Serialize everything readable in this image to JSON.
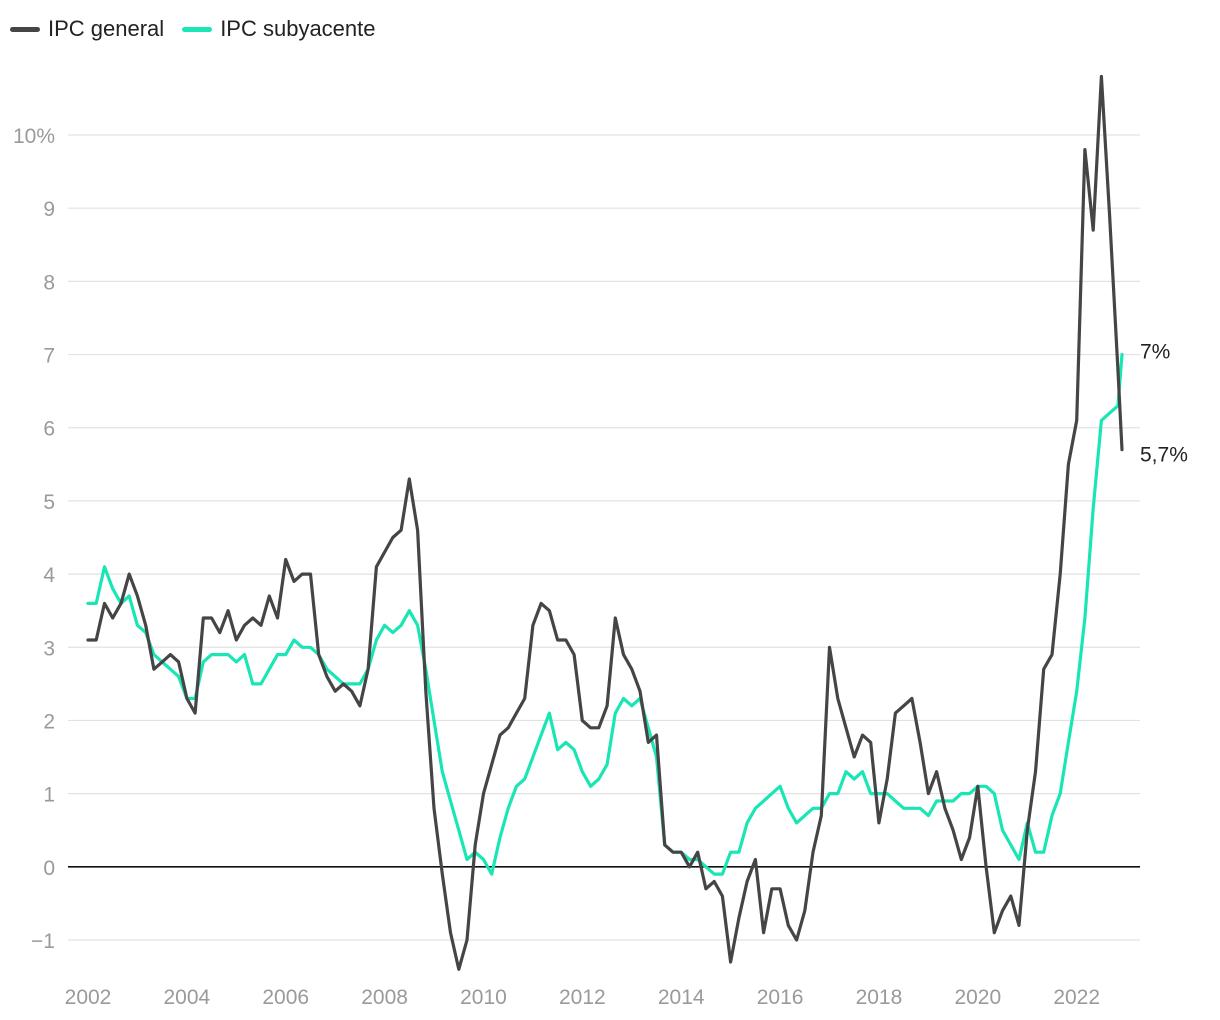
{
  "chart_data": {
    "type": "line",
    "y_unit": "%",
    "ylim": [
      -1.3,
      10.9
    ],
    "xlim": [
      2002.0,
      2023.0
    ],
    "grid": true,
    "legend_position": "top-left",
    "y_ticks": [
      {
        "value": 10,
        "label": "10%"
      },
      {
        "value": 9,
        "label": "9"
      },
      {
        "value": 8,
        "label": "8"
      },
      {
        "value": 7,
        "label": "7"
      },
      {
        "value": 6,
        "label": "6"
      },
      {
        "value": 5,
        "label": "5"
      },
      {
        "value": 4,
        "label": "4"
      },
      {
        "value": 3,
        "label": "3"
      },
      {
        "value": 2,
        "label": "2"
      },
      {
        "value": 1,
        "label": "1"
      },
      {
        "value": 0,
        "label": "0"
      },
      {
        "value": -1,
        "label": "−1"
      }
    ],
    "x_ticks": [
      "2002",
      "2004",
      "2006",
      "2008",
      "2010",
      "2012",
      "2014",
      "2016",
      "2018",
      "2020",
      "2022"
    ],
    "series": [
      {
        "name": "IPC general",
        "color": "#454545",
        "end_label": "5,7%",
        "points": [
          [
            "2002-01",
            3.1
          ],
          [
            "2002-03",
            3.1
          ],
          [
            "2002-05",
            3.6
          ],
          [
            "2002-07",
            3.4
          ],
          [
            "2002-09",
            3.6
          ],
          [
            "2002-11",
            4.0
          ],
          [
            "2003-01",
            3.7
          ],
          [
            "2003-03",
            3.3
          ],
          [
            "2003-05",
            2.7
          ],
          [
            "2003-07",
            2.8
          ],
          [
            "2003-09",
            2.9
          ],
          [
            "2003-11",
            2.8
          ],
          [
            "2004-01",
            2.3
          ],
          [
            "2004-03",
            2.1
          ],
          [
            "2004-05",
            3.4
          ],
          [
            "2004-07",
            3.4
          ],
          [
            "2004-09",
            3.2
          ],
          [
            "2004-11",
            3.5
          ],
          [
            "2005-01",
            3.1
          ],
          [
            "2005-03",
            3.3
          ],
          [
            "2005-05",
            3.4
          ],
          [
            "2005-07",
            3.3
          ],
          [
            "2005-09",
            3.7
          ],
          [
            "2005-11",
            3.4
          ],
          [
            "2006-01",
            4.2
          ],
          [
            "2006-03",
            3.9
          ],
          [
            "2006-05",
            4.0
          ],
          [
            "2006-07",
            4.0
          ],
          [
            "2006-09",
            2.9
          ],
          [
            "2006-11",
            2.6
          ],
          [
            "2007-01",
            2.4
          ],
          [
            "2007-03",
            2.5
          ],
          [
            "2007-05",
            2.4
          ],
          [
            "2007-07",
            2.2
          ],
          [
            "2007-09",
            2.7
          ],
          [
            "2007-11",
            4.1
          ],
          [
            "2008-01",
            4.3
          ],
          [
            "2008-03",
            4.5
          ],
          [
            "2008-05",
            4.6
          ],
          [
            "2008-07",
            5.3
          ],
          [
            "2008-09",
            4.6
          ],
          [
            "2008-11",
            2.4
          ],
          [
            "2009-01",
            0.8
          ],
          [
            "2009-03",
            -0.1
          ],
          [
            "2009-05",
            -0.9
          ],
          [
            "2009-07",
            -1.4
          ],
          [
            "2009-09",
            -1.0
          ],
          [
            "2009-11",
            0.3
          ],
          [
            "2010-01",
            1.0
          ],
          [
            "2010-03",
            1.4
          ],
          [
            "2010-05",
            1.8
          ],
          [
            "2010-07",
            1.9
          ],
          [
            "2010-09",
            2.1
          ],
          [
            "2010-11",
            2.3
          ],
          [
            "2011-01",
            3.3
          ],
          [
            "2011-03",
            3.6
          ],
          [
            "2011-05",
            3.5
          ],
          [
            "2011-07",
            3.1
          ],
          [
            "2011-09",
            3.1
          ],
          [
            "2011-11",
            2.9
          ],
          [
            "2012-01",
            2.0
          ],
          [
            "2012-03",
            1.9
          ],
          [
            "2012-05",
            1.9
          ],
          [
            "2012-07",
            2.2
          ],
          [
            "2012-09",
            3.4
          ],
          [
            "2012-11",
            2.9
          ],
          [
            "2013-01",
            2.7
          ],
          [
            "2013-03",
            2.4
          ],
          [
            "2013-05",
            1.7
          ],
          [
            "2013-07",
            1.8
          ],
          [
            "2013-09",
            0.3
          ],
          [
            "2013-11",
            0.2
          ],
          [
            "2014-01",
            0.2
          ],
          [
            "2014-03",
            0.0
          ],
          [
            "2014-05",
            0.2
          ],
          [
            "2014-07",
            -0.3
          ],
          [
            "2014-09",
            -0.2
          ],
          [
            "2014-11",
            -0.4
          ],
          [
            "2015-01",
            -1.3
          ],
          [
            "2015-03",
            -0.7
          ],
          [
            "2015-05",
            -0.2
          ],
          [
            "2015-07",
            0.1
          ],
          [
            "2015-09",
            -0.9
          ],
          [
            "2015-11",
            -0.3
          ],
          [
            "2016-01",
            -0.3
          ],
          [
            "2016-03",
            -0.8
          ],
          [
            "2016-05",
            -1.0
          ],
          [
            "2016-07",
            -0.6
          ],
          [
            "2016-09",
            0.2
          ],
          [
            "2016-11",
            0.7
          ],
          [
            "2017-01",
            3.0
          ],
          [
            "2017-03",
            2.3
          ],
          [
            "2017-05",
            1.9
          ],
          [
            "2017-07",
            1.5
          ],
          [
            "2017-09",
            1.8
          ],
          [
            "2017-11",
            1.7
          ],
          [
            "2018-01",
            0.6
          ],
          [
            "2018-03",
            1.2
          ],
          [
            "2018-05",
            2.1
          ],
          [
            "2018-07",
            2.2
          ],
          [
            "2018-09",
            2.3
          ],
          [
            "2018-11",
            1.7
          ],
          [
            "2019-01",
            1.0
          ],
          [
            "2019-03",
            1.3
          ],
          [
            "2019-05",
            0.8
          ],
          [
            "2019-07",
            0.5
          ],
          [
            "2019-09",
            0.1
          ],
          [
            "2019-11",
            0.4
          ],
          [
            "2020-01",
            1.1
          ],
          [
            "2020-03",
            0.0
          ],
          [
            "2020-05",
            -0.9
          ],
          [
            "2020-07",
            -0.6
          ],
          [
            "2020-09",
            -0.4
          ],
          [
            "2020-11",
            -0.8
          ],
          [
            "2021-01",
            0.5
          ],
          [
            "2021-03",
            1.3
          ],
          [
            "2021-05",
            2.7
          ],
          [
            "2021-07",
            2.9
          ],
          [
            "2021-09",
            4.0
          ],
          [
            "2021-11",
            5.5
          ],
          [
            "2022-01",
            6.1
          ],
          [
            "2022-03",
            9.8
          ],
          [
            "2022-05",
            8.7
          ],
          [
            "2022-07",
            10.8
          ],
          [
            "2022-09",
            8.9
          ],
          [
            "2022-11",
            6.8
          ],
          [
            "2022-12",
            5.7
          ]
        ]
      },
      {
        "name": "IPC subyacente",
        "color": "#19e6b4",
        "end_label": "7%",
        "points": [
          [
            "2002-01",
            3.6
          ],
          [
            "2002-03",
            3.6
          ],
          [
            "2002-05",
            4.1
          ],
          [
            "2002-07",
            3.8
          ],
          [
            "2002-09",
            3.6
          ],
          [
            "2002-11",
            3.7
          ],
          [
            "2003-01",
            3.3
          ],
          [
            "2003-03",
            3.2
          ],
          [
            "2003-05",
            2.9
          ],
          [
            "2003-07",
            2.8
          ],
          [
            "2003-09",
            2.7
          ],
          [
            "2003-11",
            2.6
          ],
          [
            "2004-01",
            2.3
          ],
          [
            "2004-03",
            2.3
          ],
          [
            "2004-05",
            2.8
          ],
          [
            "2004-07",
            2.9
          ],
          [
            "2004-09",
            2.9
          ],
          [
            "2004-11",
            2.9
          ],
          [
            "2005-01",
            2.8
          ],
          [
            "2005-03",
            2.9
          ],
          [
            "2005-05",
            2.5
          ],
          [
            "2005-07",
            2.5
          ],
          [
            "2005-09",
            2.7
          ],
          [
            "2005-11",
            2.9
          ],
          [
            "2006-01",
            2.9
          ],
          [
            "2006-03",
            3.1
          ],
          [
            "2006-05",
            3.0
          ],
          [
            "2006-07",
            3.0
          ],
          [
            "2006-09",
            2.9
          ],
          [
            "2006-11",
            2.7
          ],
          [
            "2007-01",
            2.6
          ],
          [
            "2007-03",
            2.5
          ],
          [
            "2007-05",
            2.5
          ],
          [
            "2007-07",
            2.5
          ],
          [
            "2007-09",
            2.7
          ],
          [
            "2007-11",
            3.1
          ],
          [
            "2008-01",
            3.3
          ],
          [
            "2008-03",
            3.2
          ],
          [
            "2008-05",
            3.3
          ],
          [
            "2008-07",
            3.5
          ],
          [
            "2008-09",
            3.3
          ],
          [
            "2008-11",
            2.7
          ],
          [
            "2009-01",
            2.0
          ],
          [
            "2009-03",
            1.3
          ],
          [
            "2009-05",
            0.9
          ],
          [
            "2009-07",
            0.5
          ],
          [
            "2009-09",
            0.1
          ],
          [
            "2009-11",
            0.2
          ],
          [
            "2010-01",
            0.1
          ],
          [
            "2010-03",
            -0.1
          ],
          [
            "2010-05",
            0.4
          ],
          [
            "2010-07",
            0.8
          ],
          [
            "2010-09",
            1.1
          ],
          [
            "2010-11",
            1.2
          ],
          [
            "2011-01",
            1.5
          ],
          [
            "2011-03",
            1.8
          ],
          [
            "2011-05",
            2.1
          ],
          [
            "2011-07",
            1.6
          ],
          [
            "2011-09",
            1.7
          ],
          [
            "2011-11",
            1.6
          ],
          [
            "2012-01",
            1.3
          ],
          [
            "2012-03",
            1.1
          ],
          [
            "2012-05",
            1.2
          ],
          [
            "2012-07",
            1.4
          ],
          [
            "2012-09",
            2.1
          ],
          [
            "2012-11",
            2.3
          ],
          [
            "2013-01",
            2.2
          ],
          [
            "2013-03",
            2.3
          ],
          [
            "2013-05",
            1.9
          ],
          [
            "2013-07",
            1.5
          ],
          [
            "2013-09",
            0.3
          ],
          [
            "2013-11",
            0.2
          ],
          [
            "2014-01",
            0.2
          ],
          [
            "2014-03",
            0.1
          ],
          [
            "2014-05",
            0.1
          ],
          [
            "2014-07",
            0.0
          ],
          [
            "2014-09",
            -0.1
          ],
          [
            "2014-11",
            -0.1
          ],
          [
            "2015-01",
            0.2
          ],
          [
            "2015-03",
            0.2
          ],
          [
            "2015-05",
            0.6
          ],
          [
            "2015-07",
            0.8
          ],
          [
            "2015-09",
            0.9
          ],
          [
            "2015-11",
            1.0
          ],
          [
            "2016-01",
            1.1
          ],
          [
            "2016-03",
            0.8
          ],
          [
            "2016-05",
            0.6
          ],
          [
            "2016-07",
            0.7
          ],
          [
            "2016-09",
            0.8
          ],
          [
            "2016-11",
            0.8
          ],
          [
            "2017-01",
            1.0
          ],
          [
            "2017-03",
            1.0
          ],
          [
            "2017-05",
            1.3
          ],
          [
            "2017-07",
            1.2
          ],
          [
            "2017-09",
            1.3
          ],
          [
            "2017-11",
            1.0
          ],
          [
            "2018-01",
            1.0
          ],
          [
            "2018-03",
            1.0
          ],
          [
            "2018-05",
            0.9
          ],
          [
            "2018-07",
            0.8
          ],
          [
            "2018-09",
            0.8
          ],
          [
            "2018-11",
            0.8
          ],
          [
            "2019-01",
            0.7
          ],
          [
            "2019-03",
            0.9
          ],
          [
            "2019-05",
            0.9
          ],
          [
            "2019-07",
            0.9
          ],
          [
            "2019-09",
            1.0
          ],
          [
            "2019-11",
            1.0
          ],
          [
            "2020-01",
            1.1
          ],
          [
            "2020-03",
            1.1
          ],
          [
            "2020-05",
            1.0
          ],
          [
            "2020-07",
            0.5
          ],
          [
            "2020-09",
            0.3
          ],
          [
            "2020-11",
            0.1
          ],
          [
            "2021-01",
            0.6
          ],
          [
            "2021-03",
            0.2
          ],
          [
            "2021-05",
            0.2
          ],
          [
            "2021-07",
            0.7
          ],
          [
            "2021-09",
            1.0
          ],
          [
            "2021-11",
            1.7
          ],
          [
            "2022-01",
            2.4
          ],
          [
            "2022-03",
            3.4
          ],
          [
            "2022-05",
            4.9
          ],
          [
            "2022-07",
            6.1
          ],
          [
            "2022-09",
            6.2
          ],
          [
            "2022-11",
            6.3
          ],
          [
            "2022-12",
            7.0
          ]
        ]
      }
    ]
  }
}
